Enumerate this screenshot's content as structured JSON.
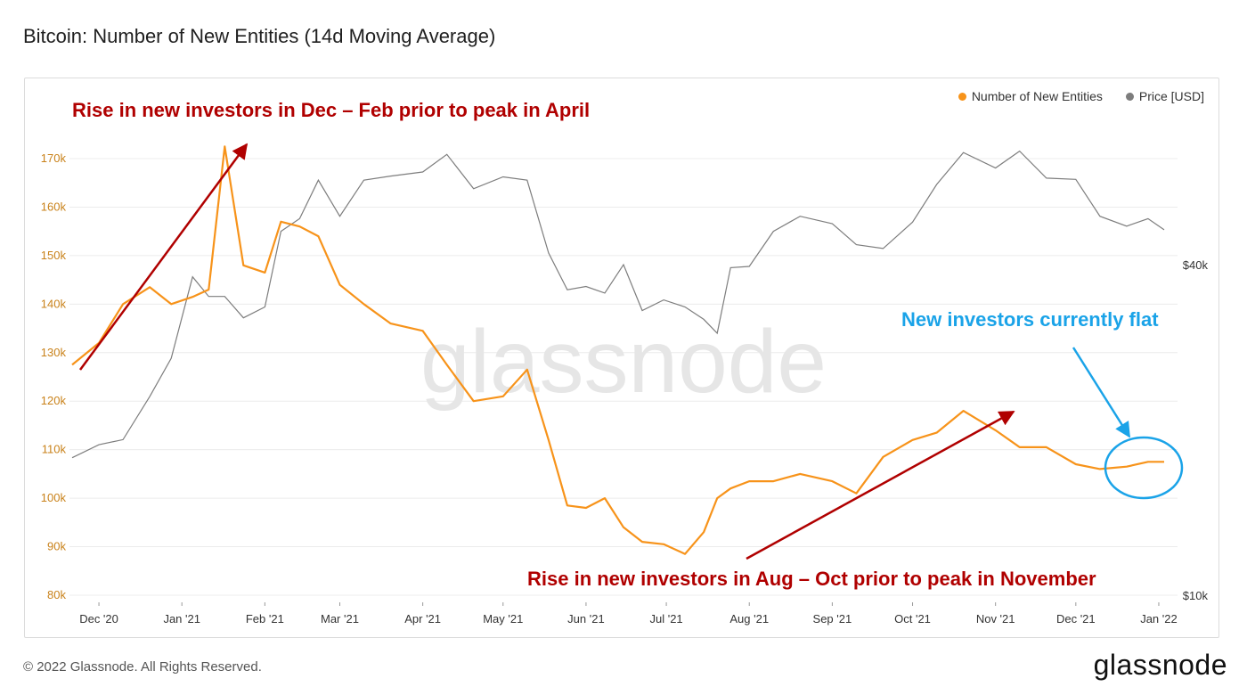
{
  "title": "Bitcoin: Number of New Entities (14d Moving Average)",
  "legend": [
    {
      "label": "Number of New Entities",
      "color": "#f7931a"
    },
    {
      "label": "Price [USD]",
      "color": "#7d7d7d"
    }
  ],
  "watermark": "glassnode",
  "footer": "© 2022 Glassnode. All Rights Reserved.",
  "brand": "glassnode",
  "annotations": {
    "top_left": "Rise in new investors in Dec – Feb prior to peak in April",
    "bottom_right": "Rise in new investors in Aug – Oct prior to peak in November",
    "right": "New investors currently flat"
  },
  "chart_data": {
    "type": "line",
    "x_ticks": [
      "Dec '20",
      "Jan '21",
      "Feb '21",
      "Mar '21",
      "Apr '21",
      "May '21",
      "Jun '21",
      "Jul '21",
      "Aug '21",
      "Sep '21",
      "Oct '21",
      "Nov '21",
      "Dec '21",
      "Jan '22"
    ],
    "y_left": {
      "ticks": [
        "80k",
        "90k",
        "100k",
        "110k",
        "120k",
        "130k",
        "140k",
        "150k",
        "160k",
        "170k"
      ],
      "range": [
        80000,
        170000
      ],
      "color": "#c9821a"
    },
    "y_right": {
      "ticks": [
        "$10k",
        "$40k"
      ],
      "scale": "log"
    },
    "x": [
      "2020-11-21",
      "2020-12-01",
      "2020-12-10",
      "2020-12-20",
      "2020-12-28",
      "2021-01-05",
      "2021-01-11",
      "2021-01-17",
      "2021-01-24",
      "2021-02-01",
      "2021-02-07",
      "2021-02-14",
      "2021-02-21",
      "2021-03-01",
      "2021-03-10",
      "2021-03-20",
      "2021-04-01",
      "2021-04-10",
      "2021-04-20",
      "2021-05-01",
      "2021-05-10",
      "2021-05-18",
      "2021-05-25",
      "2021-06-01",
      "2021-06-08",
      "2021-06-15",
      "2021-06-22",
      "2021-06-30",
      "2021-07-08",
      "2021-07-15",
      "2021-07-20",
      "2021-07-25",
      "2021-08-01",
      "2021-08-10",
      "2021-08-20",
      "2021-09-01",
      "2021-09-10",
      "2021-09-20",
      "2021-10-01",
      "2021-10-10",
      "2021-10-20",
      "2021-11-01",
      "2021-11-10",
      "2021-11-20",
      "2021-12-01",
      "2021-12-10",
      "2021-12-20",
      "2021-12-28",
      "2022-01-03"
    ],
    "series": [
      {
        "name": "Number of New Entities",
        "color": "#f7931a",
        "values": [
          127500,
          132000,
          140000,
          143500,
          140000,
          141500,
          143000,
          172500,
          148000,
          146500,
          157000,
          156000,
          154000,
          144000,
          140000,
          136000,
          134500,
          127500,
          120000,
          121000,
          126500,
          112000,
          98500,
          98000,
          100000,
          94000,
          91000,
          90500,
          88500,
          93000,
          100000,
          102000,
          103500,
          103500,
          105000,
          103500,
          101000,
          108500,
          112000,
          113500,
          118000,
          114000,
          110500,
          110500,
          107000,
          106000,
          106500,
          107500,
          107500
        ]
      },
      {
        "name": "Price [USD]",
        "values": [
          17800,
          18800,
          19200,
          23000,
          27000,
          38000,
          35000,
          35000,
          32000,
          33500,
          46000,
          48500,
          57000,
          49000,
          57000,
          58000,
          59000,
          63500,
          55000,
          57800,
          57000,
          42000,
          36000,
          36500,
          35500,
          40000,
          33000,
          34500,
          33500,
          31800,
          30000,
          39500,
          39700,
          46000,
          49000,
          47500,
          43500,
          42800,
          47800,
          56000,
          64000,
          60000,
          64400,
          57500,
          57200,
          49000,
          47000,
          48500,
          46300
        ]
      }
    ]
  }
}
